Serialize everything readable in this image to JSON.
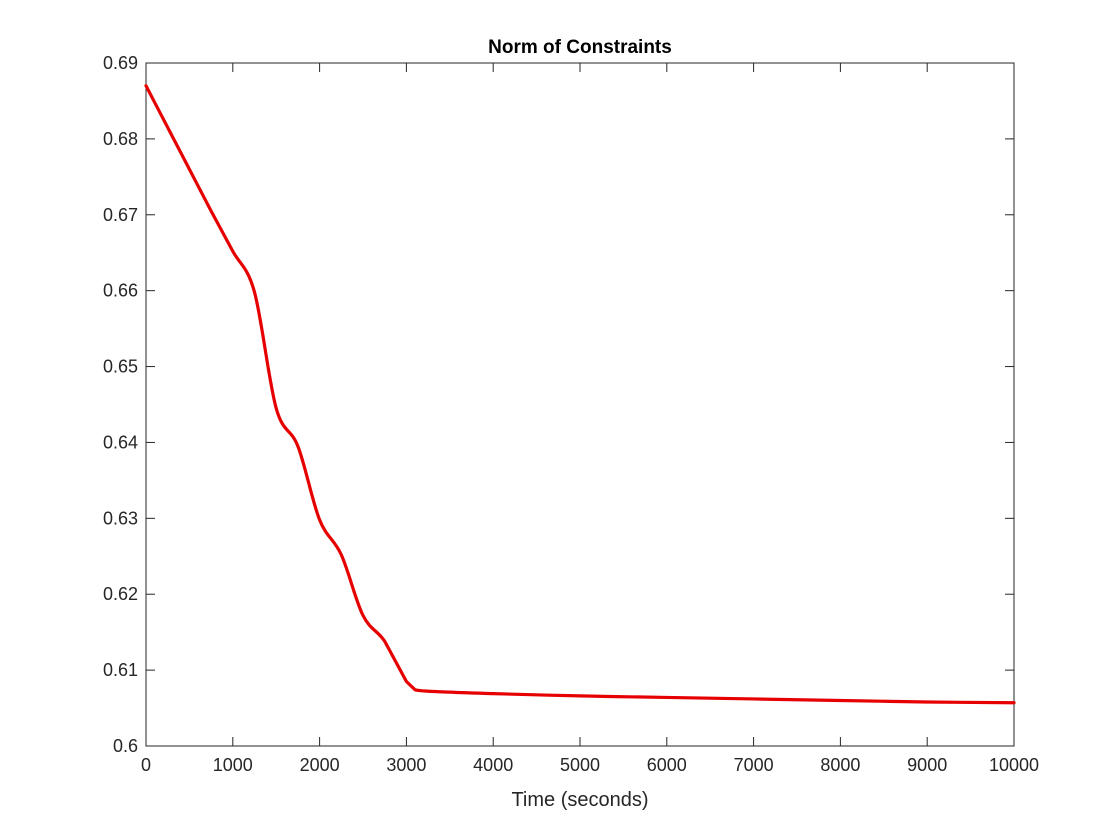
{
  "chart_data": {
    "type": "line",
    "title": "Norm of Constraints",
    "xlabel": "Time (seconds)",
    "ylabel": "",
    "xlim": [
      0,
      10000
    ],
    "ylim": [
      0.6,
      0.69
    ],
    "xticks": [
      0,
      1000,
      2000,
      3000,
      4000,
      5000,
      6000,
      7000,
      8000,
      9000,
      10000
    ],
    "xtick_labels": [
      "0",
      "1000",
      "2000",
      "3000",
      "4000",
      "5000",
      "6000",
      "7000",
      "8000",
      "9000",
      "10000"
    ],
    "yticks": [
      0.6,
      0.61,
      0.62,
      0.63,
      0.64,
      0.65,
      0.66,
      0.67,
      0.68,
      0.69
    ],
    "ytick_labels": [
      "0.6",
      "0.61",
      "0.62",
      "0.63",
      "0.64",
      "0.65",
      "0.66",
      "0.67",
      "0.68",
      "0.69"
    ],
    "grid": false,
    "series": [
      {
        "color": "#e60000",
        "x": [
          0,
          250,
          500,
          750,
          1000,
          1250,
          1500,
          1750,
          2000,
          2250,
          2500,
          2750,
          3000,
          3100,
          3500,
          4000,
          5000,
          6000,
          7000,
          8000,
          9000,
          10000
        ],
        "y": [
          0.687,
          0.6815,
          0.676,
          0.6705,
          0.6652,
          0.6598,
          0.6445,
          0.6395,
          0.6298,
          0.6252,
          0.6172,
          0.6138,
          0.6085,
          0.6074,
          0.6071,
          0.6069,
          0.6066,
          0.6064,
          0.6062,
          0.606,
          0.6058,
          0.6057
        ]
      }
    ]
  }
}
